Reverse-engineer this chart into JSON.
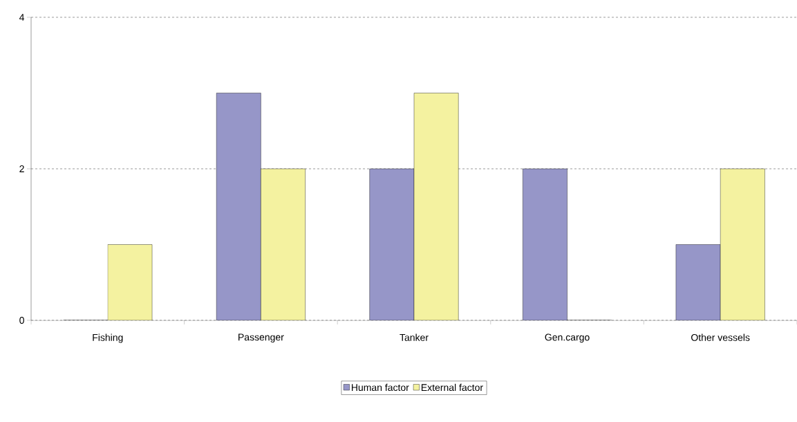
{
  "chart_data": {
    "type": "bar",
    "categories": [
      "Fishing",
      "Passenger",
      "Tanker",
      "Gen.cargo",
      "Other vessels"
    ],
    "series": [
      {
        "name": "Human factor",
        "color": "#9696c8",
        "values": [
          0,
          3,
          2,
          2,
          1
        ]
      },
      {
        "name": "External factor",
        "color": "#f4f2a0",
        "values": [
          1,
          2,
          3,
          0,
          2
        ]
      }
    ],
    "ylim": [
      0,
      4
    ],
    "yticks": [
      0,
      2,
      4
    ],
    "grid": "y",
    "legend": "bottom"
  }
}
